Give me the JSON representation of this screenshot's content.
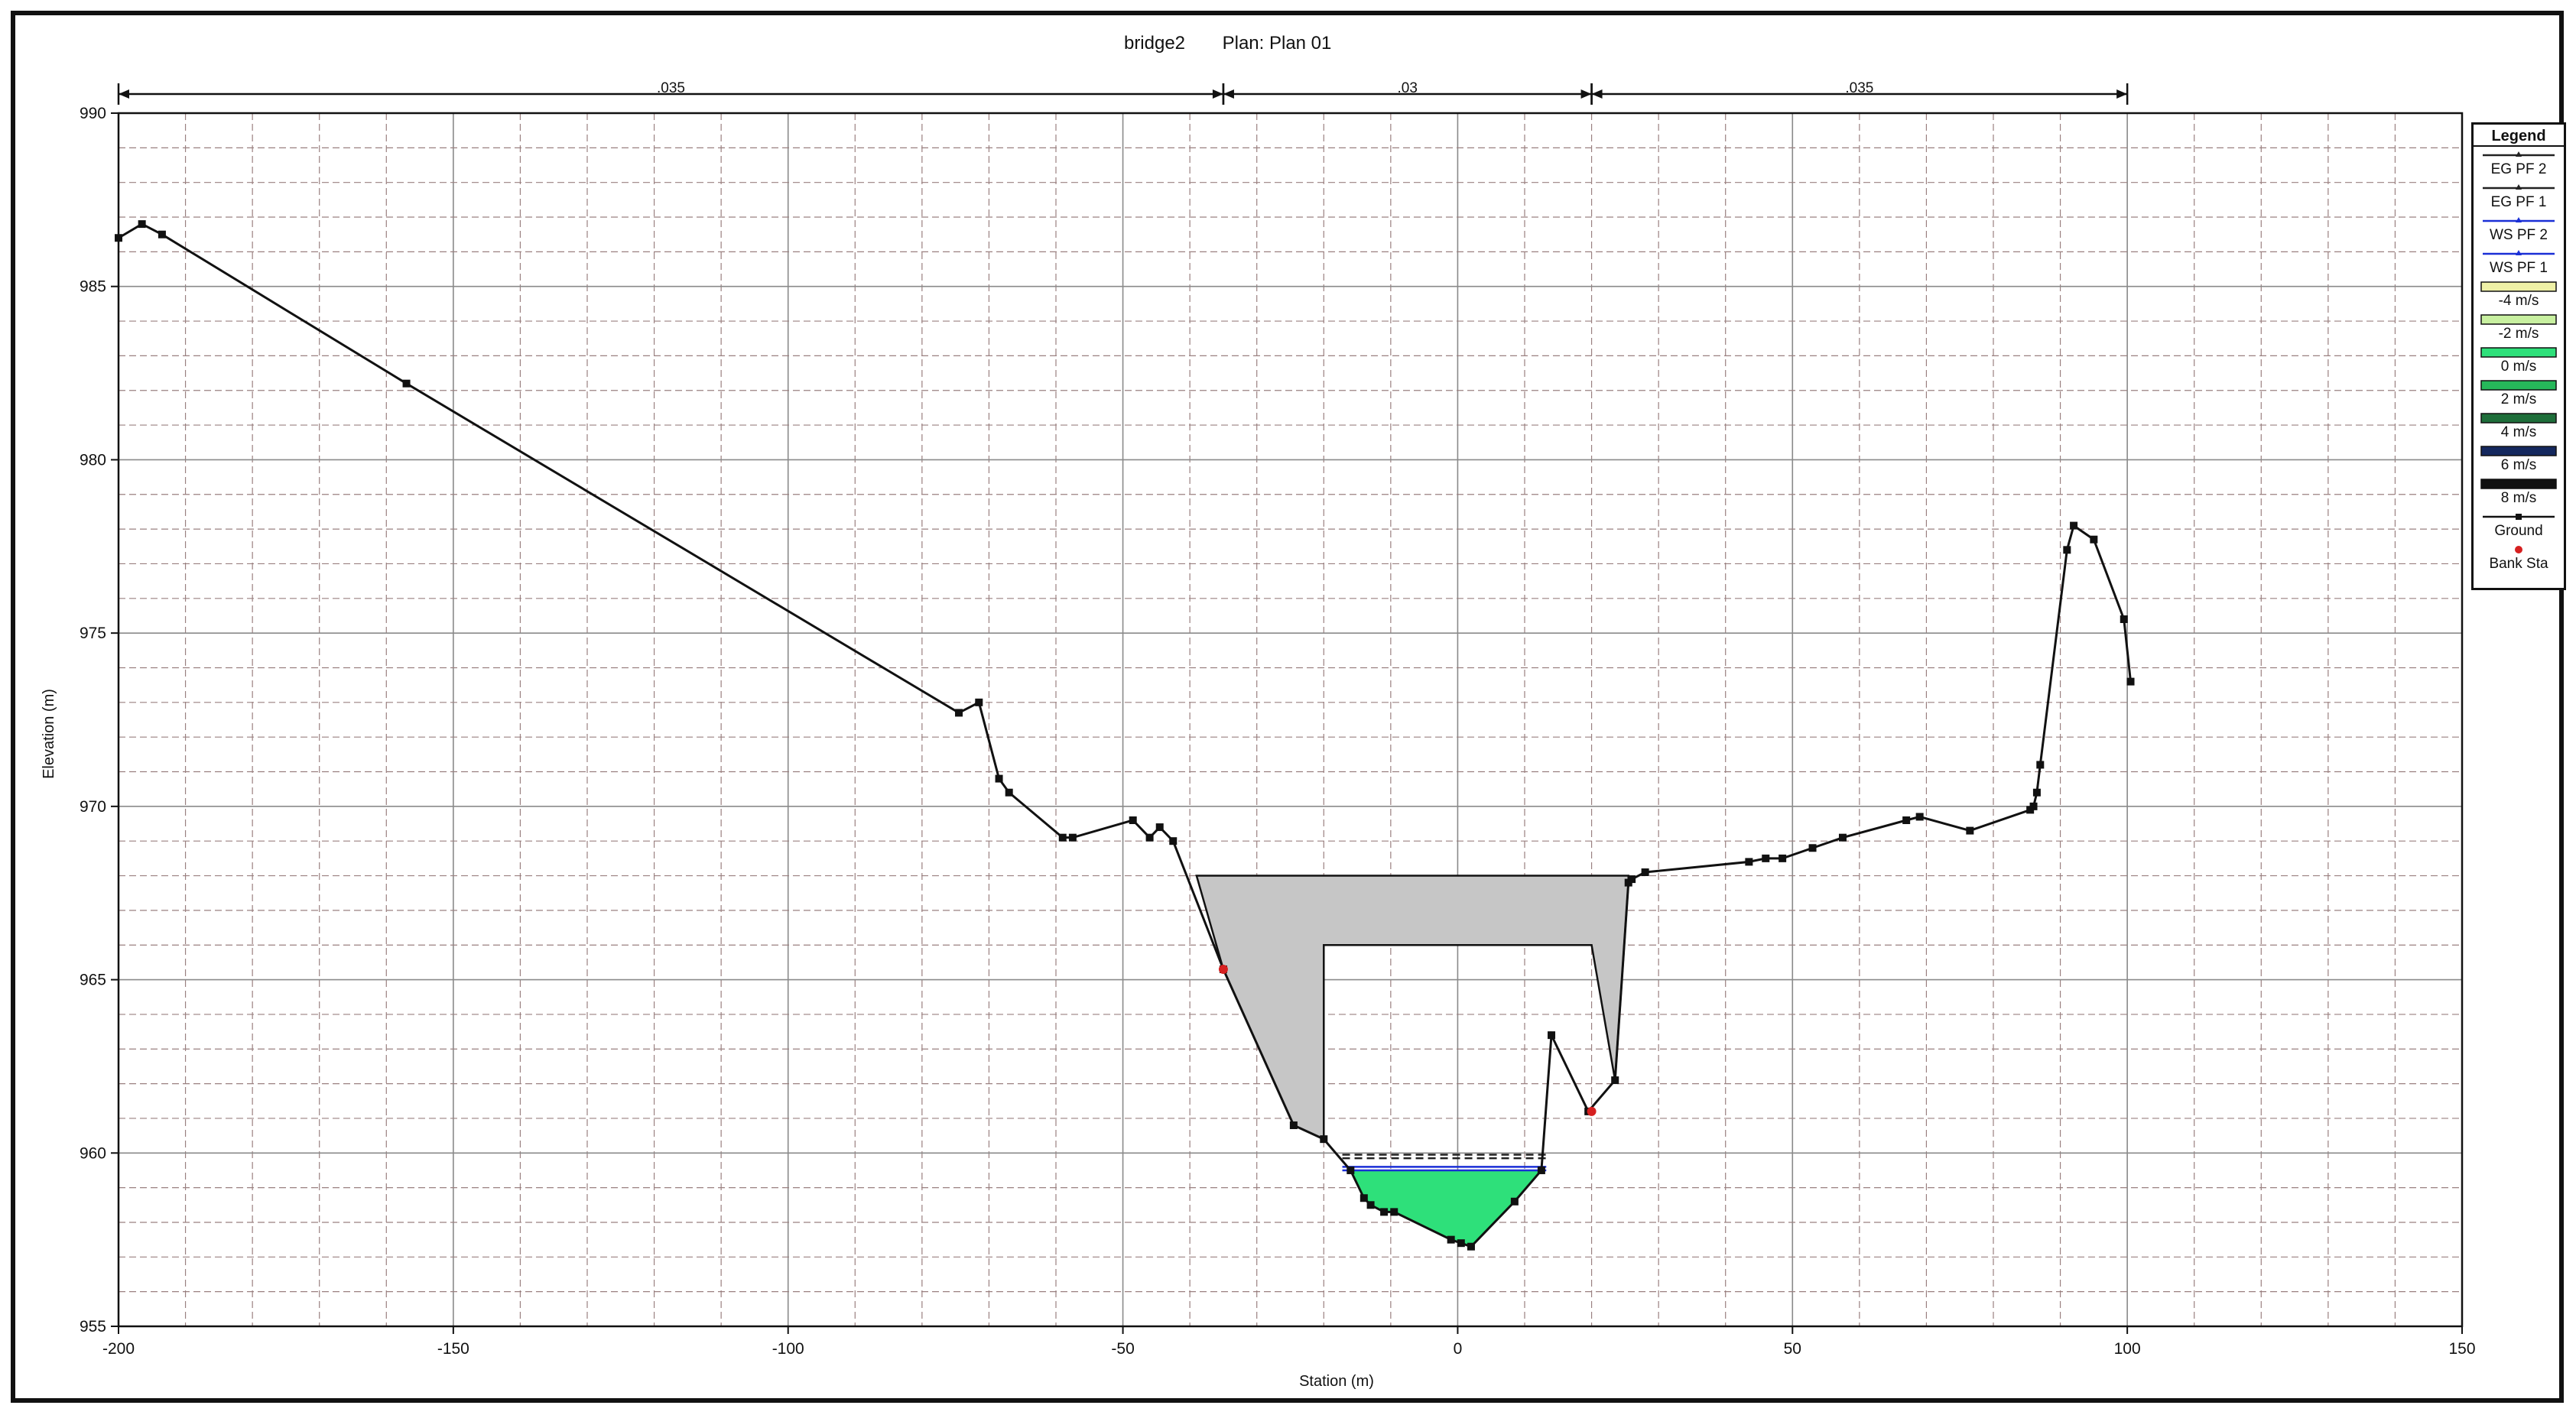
{
  "chart_data": {
    "type": "line",
    "title": "bridge2",
    "subtitle": "Plan: Plan 01",
    "xlabel": "Station (m)",
    "ylabel": "Elevation (m)",
    "xlim": [
      -200,
      150
    ],
    "ylim": [
      955,
      990
    ],
    "x_ticks": [
      -200,
      -150,
      -100,
      -50,
      0,
      50,
      100,
      150
    ],
    "x_tick_labels": [
      "-200",
      "-150",
      "-100",
      "-50",
      "0",
      "50",
      "100",
      "150"
    ],
    "y_ticks": [
      955,
      960,
      965,
      970,
      975,
      980,
      985,
      990
    ],
    "y_tick_labels": [
      "955",
      "960",
      "965",
      "970",
      "975",
      "980",
      "985",
      "990"
    ],
    "grid": true,
    "manning_n": [
      {
        "from": -200,
        "to": -35,
        "label": ".035"
      },
      {
        "from": -35,
        "to": 20,
        "label": ".03"
      },
      {
        "from": 20,
        "to": 100,
        "label": ".035"
      }
    ],
    "ground": [
      [
        -200,
        986.4
      ],
      [
        -196.5,
        986.8
      ],
      [
        -193.5,
        986.5
      ],
      [
        -157,
        982.2
      ],
      [
        -74.5,
        972.7
      ],
      [
        -71.5,
        973.0
      ],
      [
        -68.5,
        970.8
      ],
      [
        -67,
        970.4
      ],
      [
        -59,
        969.1
      ],
      [
        -57.5,
        969.1
      ],
      [
        -48.5,
        969.6
      ],
      [
        -46,
        969.1
      ],
      [
        -44.5,
        969.4
      ],
      [
        -42.5,
        969.0
      ],
      [
        -35,
        965.3
      ],
      [
        -24.5,
        960.8
      ],
      [
        -20,
        960.4
      ],
      [
        -16,
        959.5
      ],
      [
        -14,
        958.7
      ],
      [
        -13,
        958.5
      ],
      [
        -11,
        958.3
      ],
      [
        -9.5,
        958.3
      ],
      [
        -1,
        957.5
      ],
      [
        0.5,
        957.4
      ],
      [
        2,
        957.3
      ],
      [
        8.5,
        958.6
      ],
      [
        12.5,
        959.5
      ],
      [
        14,
        963.4
      ],
      [
        19.5,
        961.2
      ],
      [
        23.5,
        962.1
      ],
      [
        25.5,
        967.8
      ],
      [
        26,
        967.9
      ],
      [
        28,
        968.1
      ],
      [
        43.5,
        968.4
      ],
      [
        46,
        968.5
      ],
      [
        48.5,
        968.5
      ],
      [
        53,
        968.8
      ],
      [
        57.5,
        969.1
      ],
      [
        67,
        969.6
      ],
      [
        69,
        969.7
      ],
      [
        76.5,
        969.3
      ],
      [
        85.5,
        969.9
      ],
      [
        86,
        970.0
      ],
      [
        86.5,
        970.4
      ],
      [
        87,
        971.2
      ],
      [
        91,
        977.4
      ],
      [
        92,
        978.1
      ],
      [
        95,
        977.7
      ],
      [
        99.5,
        975.4
      ],
      [
        100.5,
        973.6
      ]
    ],
    "bank_stations": [
      [
        -35,
        965.3
      ],
      [
        20,
        961.2
      ]
    ],
    "bridge_deck": {
      "low_chord_elevation": 966.0,
      "high_chord_elevation": 968.0,
      "opening_left_station": -20,
      "opening_right_station": 20,
      "deck_left_station": -39,
      "deck_right_station": 25.5
    },
    "series": [
      {
        "name": "EG PF 2",
        "elevation": 959.95,
        "color": "#222222"
      },
      {
        "name": "EG PF 1",
        "elevation": 959.85,
        "color": "#222222"
      },
      {
        "name": "WS PF 2",
        "elevation": 959.6,
        "color": "#1a2fd6"
      },
      {
        "name": "WS PF 1",
        "elevation": 959.5,
        "color": "#1a2fd6"
      }
    ],
    "flow_area": {
      "from": -17,
      "to": 13,
      "water_surface": 959.5,
      "fill": "#2ee07a"
    },
    "legend_title": "Legend",
    "legend": [
      {
        "label": "EG PF 2",
        "kind": "line",
        "color": "#222222"
      },
      {
        "label": "EG PF 1",
        "kind": "line",
        "color": "#222222"
      },
      {
        "label": "WS PF 2",
        "kind": "line",
        "color": "#1a2fd6"
      },
      {
        "label": "WS PF 1",
        "kind": "line",
        "color": "#1a2fd6"
      },
      {
        "label": "-4 m/s",
        "kind": "band",
        "color": "#eef0a6"
      },
      {
        "label": "-2 m/s",
        "kind": "band",
        "color": "#c8f0a0"
      },
      {
        "label": "0 m/s",
        "kind": "band",
        "color": "#2ee07a"
      },
      {
        "label": "2 m/s",
        "kind": "band",
        "color": "#26b85a"
      },
      {
        "label": "4 m/s",
        "kind": "band",
        "color": "#1e6e3a"
      },
      {
        "label": "6 m/s",
        "kind": "band",
        "color": "#14285e"
      },
      {
        "label": "8 m/s",
        "kind": "band",
        "color": "#111111"
      },
      {
        "label": "Ground",
        "kind": "ground",
        "color": "#111111"
      },
      {
        "label": "Bank Sta",
        "kind": "dot",
        "color": "#d62020"
      }
    ],
    "legend_position": "right",
    "colors": {
      "ground": "#111111",
      "bridge": "#c6c6c6",
      "bank": "#d62020",
      "grid_major": "#8a8a8a",
      "grid_minor": "#9a8080"
    }
  }
}
